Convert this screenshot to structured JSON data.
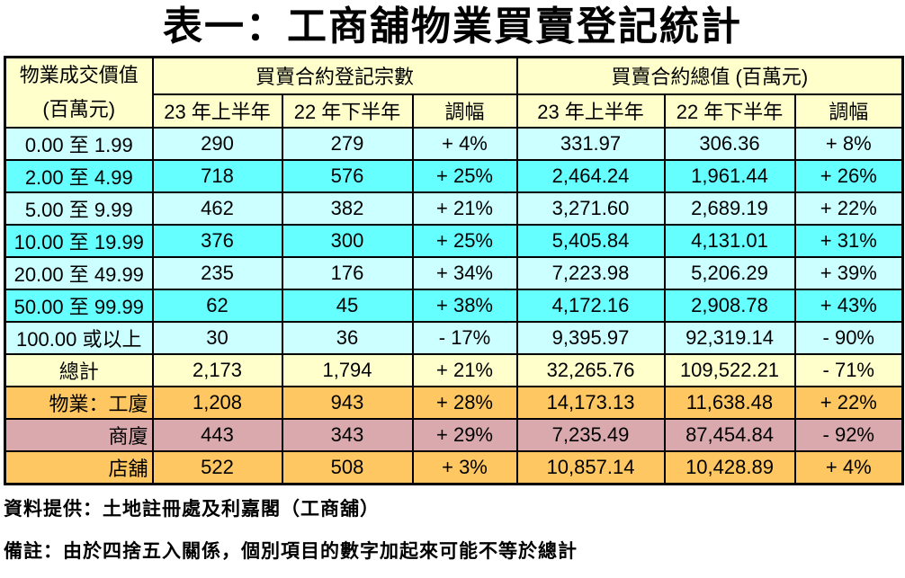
{
  "title": "表一：工商舖物業買賣登記統計",
  "colors": {
    "header_bg": "#FFFFCC",
    "row_cyan_light": "#CCFFFF",
    "row_cyan_bright": "#66FFFF",
    "row_yellow": "#FFFFCC",
    "row_orange": "#FFC761",
    "row_pink": "#D9A9AE",
    "border": "#000000",
    "text": "#000000"
  },
  "table": {
    "col1_header_line1": "物業成交價值",
    "col1_header_line2": "(百萬元)",
    "group_headers": [
      "買賣合約登記宗數",
      "買賣合約總值 (百萬元)"
    ],
    "sub_headers": [
      "23 年上半年",
      "22 年下半年",
      "調幅",
      "23 年上半年",
      "22 年下半年",
      "調幅"
    ],
    "rows": [
      {
        "label": "0.00 至 1.99",
        "align": "center",
        "bg": "cyan_light",
        "cells": [
          "290",
          "279",
          "+ 4%",
          "331.97",
          "306.36",
          "+ 8%"
        ]
      },
      {
        "label": "2.00 至 4.99",
        "align": "center",
        "bg": "cyan_bright",
        "cells": [
          "718",
          "576",
          "+ 25%",
          "2,464.24",
          "1,961.44",
          "+ 26%"
        ]
      },
      {
        "label": "5.00 至 9.99",
        "align": "center",
        "bg": "cyan_light",
        "cells": [
          "462",
          "382",
          "+ 21%",
          "3,271.60",
          "2,689.19",
          "+ 22%"
        ]
      },
      {
        "label": "10.00 至 19.99",
        "align": "center",
        "bg": "cyan_bright",
        "cells": [
          "376",
          "300",
          "+ 25%",
          "5,405.84",
          "4,131.01",
          "+ 31%"
        ]
      },
      {
        "label": "20.00 至 49.99",
        "align": "center",
        "bg": "cyan_light",
        "cells": [
          "235",
          "176",
          "+ 34%",
          "7,223.98",
          "5,206.29",
          "+ 39%"
        ]
      },
      {
        "label": "50.00 至 99.99",
        "align": "center",
        "bg": "cyan_bright",
        "cells": [
          "62",
          "45",
          "+ 38%",
          "4,172.16",
          "2,908.78",
          "+ 43%"
        ]
      },
      {
        "label": "100.00 或以上",
        "align": "center",
        "bg": "cyan_light",
        "cells": [
          "30",
          "36",
          "- 17%",
          "9,395.97",
          "92,319.14",
          "- 90%"
        ]
      },
      {
        "label": "總計",
        "align": "center",
        "bg": "yellow",
        "cells": [
          "2,173",
          "1,794",
          "+ 21%",
          "32,265.76",
          "109,522.21",
          "- 71%"
        ]
      },
      {
        "label": "物業：工廈",
        "align": "right",
        "bg": "orange",
        "cells": [
          "1,208",
          "943",
          "+ 28%",
          "14,173.13",
          "11,638.48",
          "+ 22%"
        ]
      },
      {
        "label": "商廈",
        "align": "right",
        "bg": "pink",
        "cells": [
          "443",
          "343",
          "+ 29%",
          "7,235.49",
          "87,454.84",
          "- 92%"
        ]
      },
      {
        "label": "店舖",
        "align": "right",
        "bg": "orange",
        "cells": [
          "522",
          "508",
          "+ 3%",
          "10,857.14",
          "10,428.89",
          "+ 4%"
        ]
      }
    ]
  },
  "footer": {
    "source": "資料提供：土地註冊處及利嘉閣（工商舖）",
    "note": "備註：由於四捨五入關係，個別項目的數字加起來可能不等於總計"
  },
  "chart_data": {
    "type": "table",
    "title": "表一：工商舖物業買賣登記統計",
    "column_groups": [
      "物業成交價值 (百萬元)",
      "買賣合約登記宗數",
      "買賣合約總值 (百萬元)"
    ],
    "columns": [
      "物業成交價值 (百萬元)",
      "登記宗數 23 年上半年",
      "登記宗數 22 年下半年",
      "登記宗數 調幅",
      "合約總值 23 年上半年",
      "合約總值 22 年下半年",
      "合約總值 調幅"
    ],
    "rows": [
      [
        "0.00 至 1.99",
        290,
        279,
        "+4%",
        331.97,
        306.36,
        "+8%"
      ],
      [
        "2.00 至 4.99",
        718,
        576,
        "+25%",
        2464.24,
        1961.44,
        "+26%"
      ],
      [
        "5.00 至 9.99",
        462,
        382,
        "+21%",
        3271.6,
        2689.19,
        "+22%"
      ],
      [
        "10.00 至 19.99",
        376,
        300,
        "+25%",
        5405.84,
        4131.01,
        "+31%"
      ],
      [
        "20.00 至 49.99",
        235,
        176,
        "+34%",
        7223.98,
        5206.29,
        "+39%"
      ],
      [
        "50.00 至 99.99",
        62,
        45,
        "+38%",
        4172.16,
        2908.78,
        "+43%"
      ],
      [
        "100.00 或以上",
        30,
        36,
        "-17%",
        9395.97,
        92319.14,
        "-90%"
      ],
      [
        "總計",
        2173,
        1794,
        "+21%",
        32265.76,
        109522.21,
        "-71%"
      ],
      [
        "物業：工廈",
        1208,
        943,
        "+28%",
        14173.13,
        11638.48,
        "+22%"
      ],
      [
        "商廈",
        443,
        343,
        "+29%",
        7235.49,
        87454.84,
        "-92%"
      ],
      [
        "店舖",
        522,
        508,
        "+3%",
        10857.14,
        10428.89,
        "+4%"
      ]
    ],
    "notes": [
      "資料提供：土地註冊處及利嘉閣（工商舖）",
      "備註：由於四捨五入關係，個別項目的數字加起來可能不等於總計"
    ]
  }
}
